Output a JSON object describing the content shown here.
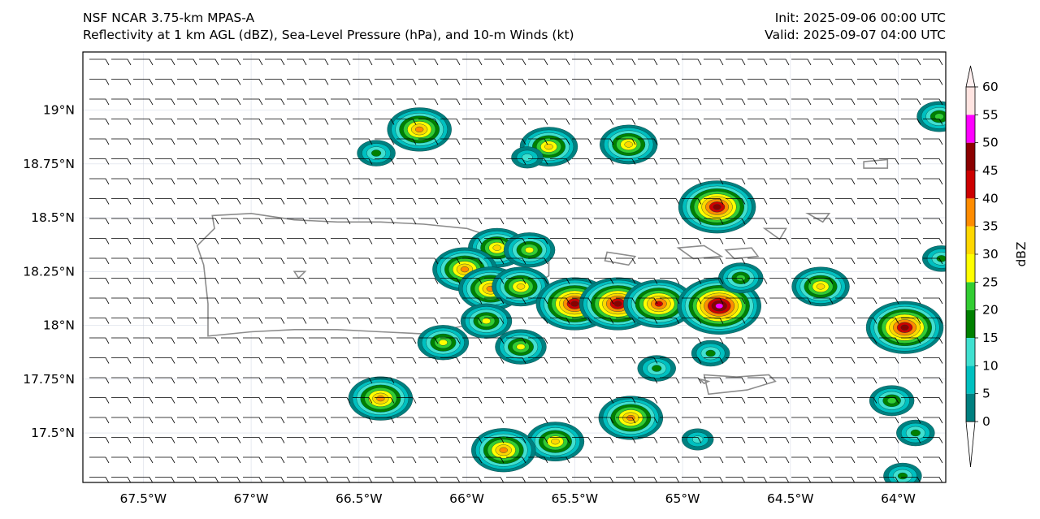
{
  "title": {
    "model": "NSF NCAR 3.75-km MPAS-A",
    "fields": "Reflectivity at 1 km AGL (dBZ), Sea-Level Pressure (hPa), and 10-m Winds (kt)",
    "init": "Init: 2025-09-06 00:00 UTC",
    "valid": "Valid: 2025-09-07 04:00 UTC"
  },
  "map": {
    "lon_range": [
      -67.78,
      -63.78
    ],
    "lat_range": [
      17.27,
      19.27
    ],
    "lat_ticks": [
      {
        "value": 19.0,
        "label": "19°N"
      },
      {
        "value": 18.75,
        "label": "18.75°N"
      },
      {
        "value": 18.5,
        "label": "18.5°N"
      },
      {
        "value": 18.25,
        "label": "18.25°N"
      },
      {
        "value": 18.0,
        "label": "18°N"
      },
      {
        "value": 17.75,
        "label": "17.75°N"
      },
      {
        "value": 17.5,
        "label": "17.5°N"
      }
    ],
    "lon_ticks": [
      {
        "value": -67.5,
        "label": "67.5°W"
      },
      {
        "value": -67.0,
        "label": "67°W"
      },
      {
        "value": -66.5,
        "label": "66.5°W"
      },
      {
        "value": -66.0,
        "label": "66°W"
      },
      {
        "value": -65.5,
        "label": "65.5°W"
      },
      {
        "value": -65.0,
        "label": "65°W"
      },
      {
        "value": -64.5,
        "label": "64.5°W"
      },
      {
        "value": -64.0,
        "label": "64°W"
      }
    ],
    "wind_direction_from_deg": 90
  },
  "colorbar": {
    "label": "dBZ",
    "levels": [
      0,
      5,
      10,
      15,
      20,
      25,
      30,
      35,
      40,
      45,
      50,
      55,
      60
    ],
    "colors": [
      "#008080",
      "#00c0c0",
      "#40e0d0",
      "#008000",
      "#32cd32",
      "#ffff00",
      "#ffd700",
      "#ff8c00",
      "#cc0000",
      "#8b0000",
      "#ff00ff",
      "#ffe4e1"
    ],
    "under_color": "#ffffff",
    "over_color": "#fff0f0"
  },
  "storms": [
    {
      "lon": -66.22,
      "lat": 18.91,
      "max_dbz": 35
    },
    {
      "lon": -66.42,
      "lat": 18.8,
      "max_dbz": 15
    },
    {
      "lon": -65.62,
      "lat": 18.83,
      "max_dbz": 30
    },
    {
      "lon": -65.25,
      "lat": 18.84,
      "max_dbz": 30
    },
    {
      "lon": -65.72,
      "lat": 18.78,
      "max_dbz": 10
    },
    {
      "lon": -64.84,
      "lat": 18.55,
      "max_dbz": 45
    },
    {
      "lon": -65.86,
      "lat": 18.36,
      "max_dbz": 30
    },
    {
      "lon": -65.71,
      "lat": 18.35,
      "max_dbz": 25
    },
    {
      "lon": -66.01,
      "lat": 18.26,
      "max_dbz": 35
    },
    {
      "lon": -65.89,
      "lat": 18.17,
      "max_dbz": 35
    },
    {
      "lon": -65.75,
      "lat": 18.18,
      "max_dbz": 30
    },
    {
      "lon": -65.5,
      "lat": 18.1,
      "max_dbz": 45
    },
    {
      "lon": -65.3,
      "lat": 18.1,
      "max_dbz": 45
    },
    {
      "lon": -65.11,
      "lat": 18.1,
      "max_dbz": 40
    },
    {
      "lon": -64.83,
      "lat": 18.09,
      "max_dbz": 50
    },
    {
      "lon": -64.73,
      "lat": 18.22,
      "max_dbz": 20
    },
    {
      "lon": -64.36,
      "lat": 18.18,
      "max_dbz": 30
    },
    {
      "lon": -63.97,
      "lat": 17.99,
      "max_dbz": 45
    },
    {
      "lon": -65.91,
      "lat": 18.02,
      "max_dbz": 25
    },
    {
      "lon": -66.11,
      "lat": 17.92,
      "max_dbz": 25
    },
    {
      "lon": -65.75,
      "lat": 17.9,
      "max_dbz": 25
    },
    {
      "lon": -64.87,
      "lat": 17.87,
      "max_dbz": 15
    },
    {
      "lon": -65.12,
      "lat": 17.8,
      "max_dbz": 15
    },
    {
      "lon": -64.03,
      "lat": 17.65,
      "max_dbz": 20
    },
    {
      "lon": -66.4,
      "lat": 17.66,
      "max_dbz": 35
    },
    {
      "lon": -65.24,
      "lat": 17.57,
      "max_dbz": 35
    },
    {
      "lon": -65.59,
      "lat": 17.46,
      "max_dbz": 30
    },
    {
      "lon": -65.83,
      "lat": 17.42,
      "max_dbz": 35
    },
    {
      "lon": -63.92,
      "lat": 17.5,
      "max_dbz": 15
    },
    {
      "lon": -64.93,
      "lat": 17.47,
      "max_dbz": 10
    },
    {
      "lon": -63.8,
      "lat": 18.31,
      "max_dbz": 15
    },
    {
      "lon": -63.81,
      "lat": 18.97,
      "max_dbz": 20
    },
    {
      "lon": -63.98,
      "lat": 17.3,
      "max_dbz": 15
    }
  ]
}
